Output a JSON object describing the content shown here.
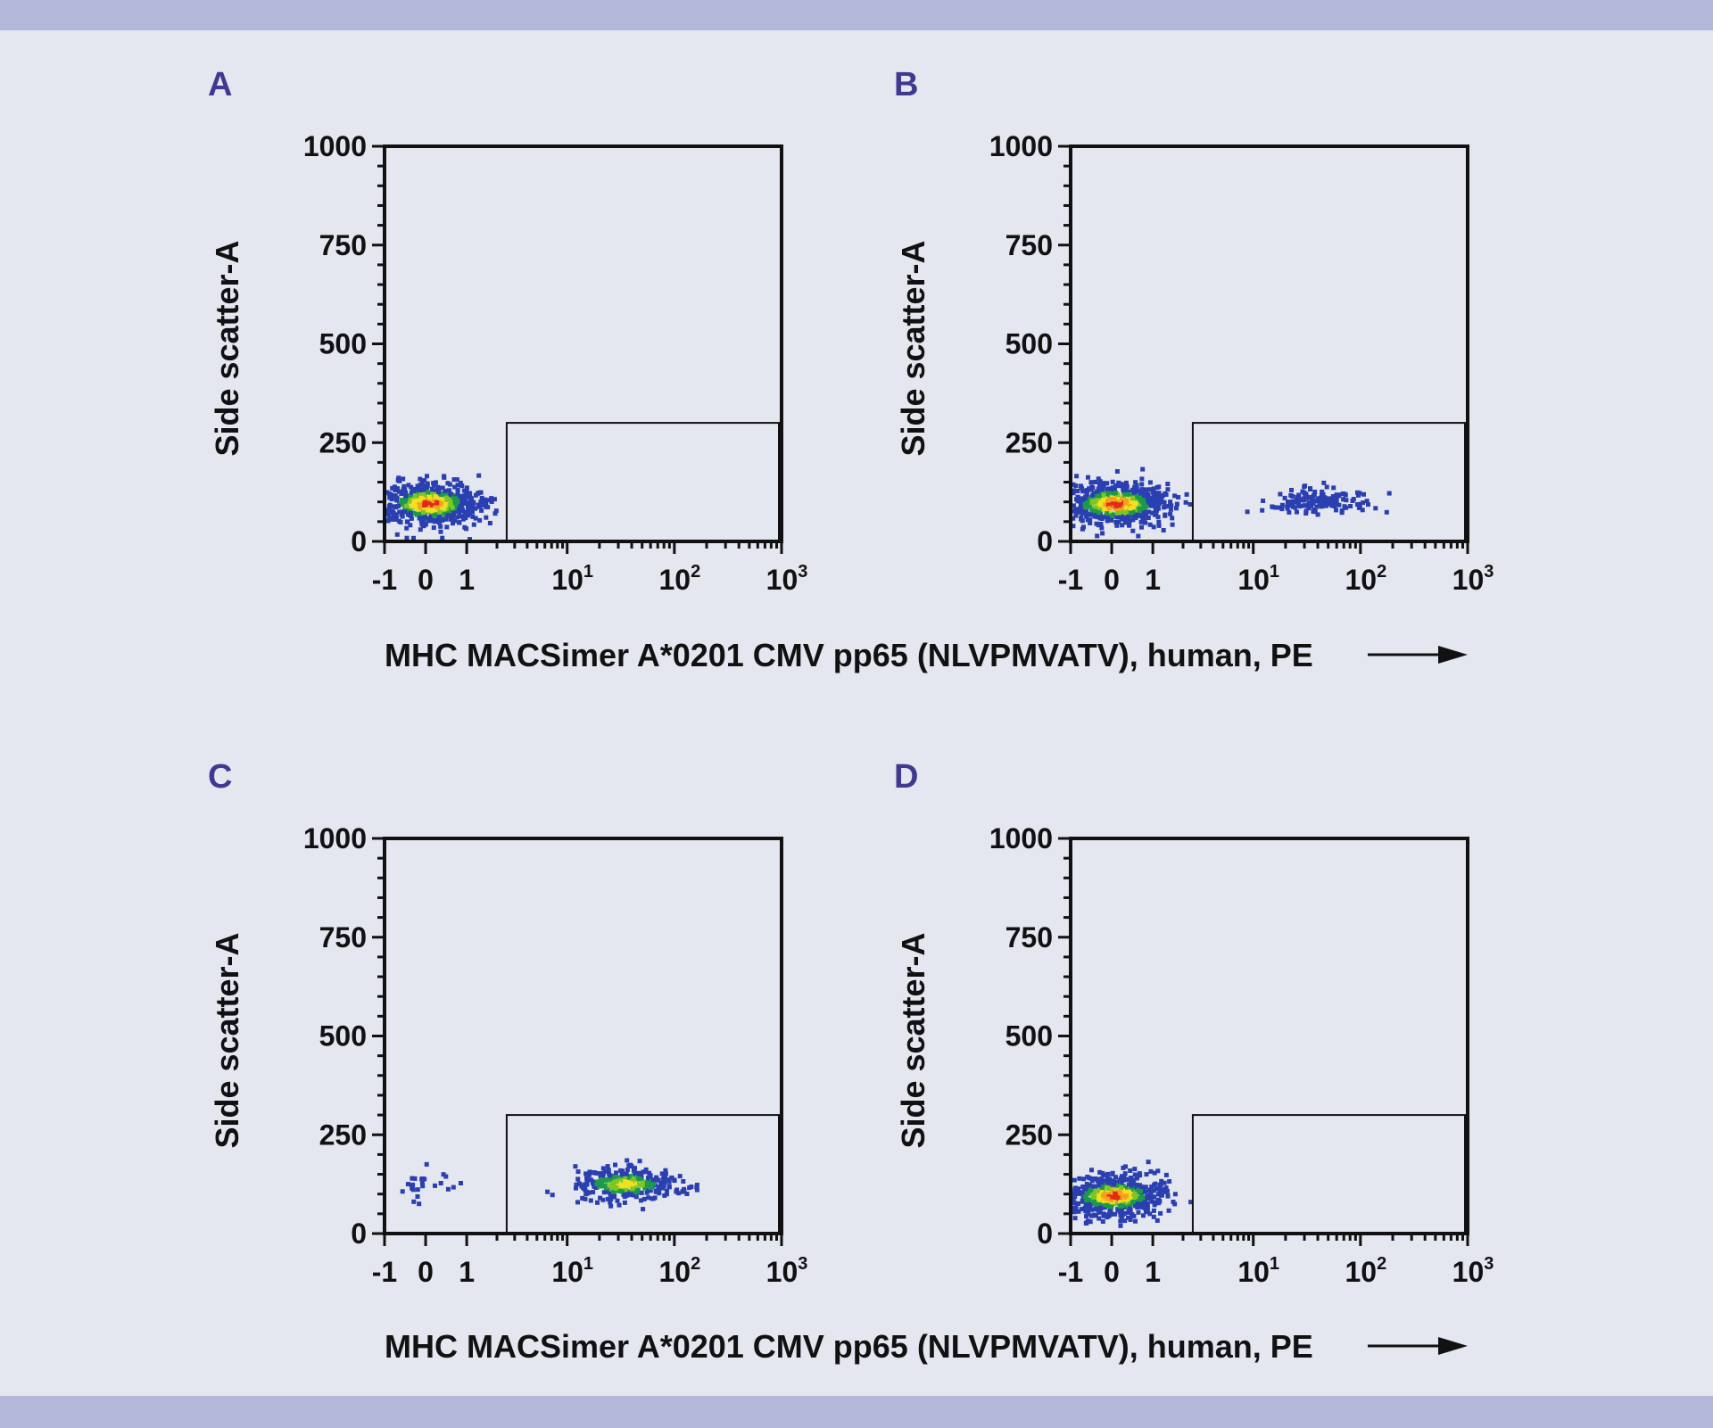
{
  "colors": {
    "background": "#e4e6f0",
    "band": "#b3b8d9",
    "panel_label": "#3f3a90",
    "density": [
      "#2a3fb0",
      "#1c9a4a",
      "#7cc62a",
      "#f0e020",
      "#f5a020",
      "#e02a1a"
    ]
  },
  "x_axis_label": "MHC MACSimer A*0201 CMV pp65 (NLVPMVATV), human, PE",
  "x_axis_arrow_icon": "arrow-right-icon",
  "chart_data": [
    {
      "type": "scatter",
      "panel": "A",
      "ylabel": "Side scatter-A",
      "ylim": [
        0,
        1000
      ],
      "xscale": "biexponential",
      "xlim": [
        -1,
        1000
      ],
      "yticks": [
        "0",
        "250",
        "500",
        "750",
        "1000"
      ],
      "xticks": [
        {
          "base": "-1",
          "exp": ""
        },
        {
          "base": "0",
          "exp": ""
        },
        {
          "base": "1",
          "exp": ""
        },
        {
          "base": "10",
          "exp": "1"
        },
        {
          "base": "10",
          "exp": "2"
        },
        {
          "base": "10",
          "exp": "3"
        }
      ],
      "gate": {
        "x": [
          2.5,
          1000
        ],
        "y": [
          0,
          300
        ]
      },
      "populations": [
        {
          "x_center": 0.1,
          "x_sd": 0.3,
          "x_scale": "linear",
          "y_center": 95,
          "y_sd": 28,
          "events": 600,
          "density": "high"
        }
      ]
    },
    {
      "type": "scatter",
      "panel": "B",
      "ylabel": "Side scatter-A",
      "ylim": [
        0,
        1000
      ],
      "xscale": "biexponential",
      "xlim": [
        -1,
        1000
      ],
      "yticks": [
        "0",
        "250",
        "500",
        "750",
        "1000"
      ],
      "xticks": [
        {
          "base": "-1",
          "exp": ""
        },
        {
          "base": "0",
          "exp": ""
        },
        {
          "base": "1",
          "exp": ""
        },
        {
          "base": "10",
          "exp": "1"
        },
        {
          "base": "10",
          "exp": "2"
        },
        {
          "base": "10",
          "exp": "3"
        }
      ],
      "gate": {
        "x": [
          2.5,
          1000
        ],
        "y": [
          0,
          300
        ]
      },
      "populations": [
        {
          "x_center": 0.1,
          "x_sd": 0.32,
          "x_scale": "linear",
          "y_center": 95,
          "y_sd": 28,
          "events": 600,
          "density": "high"
        },
        {
          "x_center": 40,
          "x_sd": 0.25,
          "x_scale": "log",
          "y_center": 105,
          "y_sd": 15,
          "events": 160,
          "density": "low"
        }
      ]
    },
    {
      "type": "scatter",
      "panel": "C",
      "ylabel": "Side scatter-A",
      "ylim": [
        0,
        1000
      ],
      "xscale": "biexponential",
      "xlim": [
        -1,
        1000
      ],
      "yticks": [
        "0",
        "250",
        "500",
        "750",
        "1000"
      ],
      "xticks": [
        {
          "base": "-1",
          "exp": ""
        },
        {
          "base": "0",
          "exp": ""
        },
        {
          "base": "1",
          "exp": ""
        },
        {
          "base": "10",
          "exp": "1"
        },
        {
          "base": "10",
          "exp": "2"
        },
        {
          "base": "10",
          "exp": "3"
        }
      ],
      "gate": {
        "x": [
          2.5,
          1000
        ],
        "y": [
          0,
          300
        ]
      },
      "populations": [
        {
          "x_center": 0.1,
          "x_sd": 0.2,
          "x_scale": "linear",
          "y_center": 115,
          "y_sd": 18,
          "events": 25,
          "density": "low"
        },
        {
          "x_center": 35,
          "x_sd": 0.25,
          "x_scale": "log",
          "y_center": 125,
          "y_sd": 20,
          "events": 320,
          "density": "medium"
        }
      ]
    },
    {
      "type": "scatter",
      "panel": "D",
      "ylabel": "Side scatter-A",
      "ylim": [
        0,
        1000
      ],
      "xscale": "biexponential",
      "xlim": [
        -1,
        1000
      ],
      "yticks": [
        "0",
        "250",
        "500",
        "750",
        "1000"
      ],
      "xticks": [
        {
          "base": "-1",
          "exp": ""
        },
        {
          "base": "0",
          "exp": ""
        },
        {
          "base": "1",
          "exp": ""
        },
        {
          "base": "10",
          "exp": "1"
        },
        {
          "base": "10",
          "exp": "2"
        },
        {
          "base": "10",
          "exp": "3"
        }
      ],
      "gate": {
        "x": [
          2.5,
          1000
        ],
        "y": [
          0,
          300
        ]
      },
      "populations": [
        {
          "x_center": 0.05,
          "x_sd": 0.3,
          "x_scale": "linear",
          "y_center": 95,
          "y_sd": 26,
          "events": 600,
          "density": "high"
        }
      ]
    }
  ]
}
